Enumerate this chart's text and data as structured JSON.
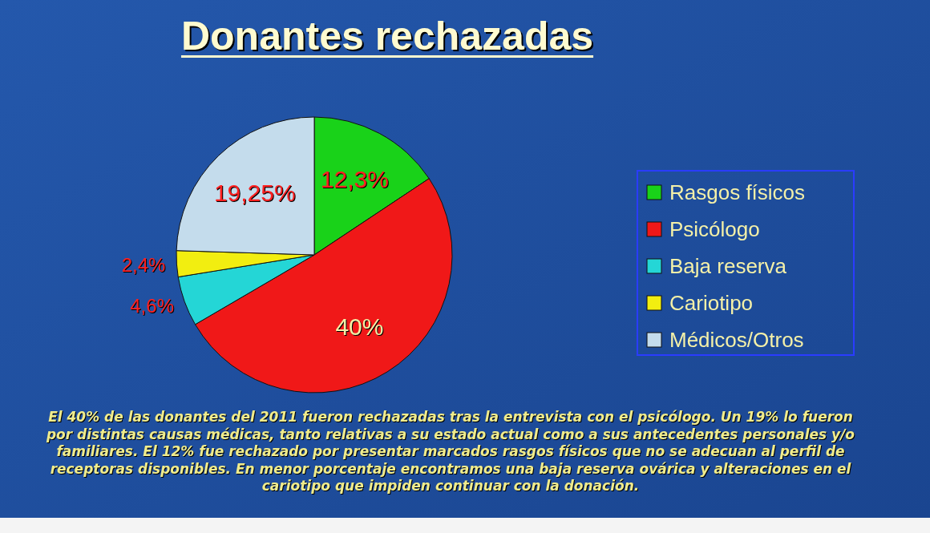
{
  "chart_data": {
    "type": "pie",
    "title": "Donantes rechazadas",
    "categories": [
      "Rasgos físicos",
      "Psicólogo",
      "Baja reserva",
      "Cariotipo",
      "Médicos/Otros"
    ],
    "values": [
      12.3,
      40,
      4.6,
      2.4,
      19.25
    ],
    "colors": [
      "#19d219",
      "#f01818",
      "#24d6d6",
      "#f2ee10",
      "#c4dcec"
    ],
    "value_labels": [
      "12,3%",
      "40%",
      "4,6%",
      "2,4%",
      "19,25%"
    ],
    "legend": "right",
    "annotations": [
      "El 40% de las donantes del 2011 fueron rechazadas tras la entrevista con el psicólogo. Un 19% lo fueron por distintas causas médicas, tanto relativas a su estado actual como a sus antecedentes personales y/o familiares. El 12% fue rechazado por presentar marcados rasgos físicos que no se adecuan al perfil de receptoras disponibles. En menor porcentaje encontramos una baja reserva ovárica y alteraciones en el cariotipo que impiden continuar con la donación."
    ]
  }
}
